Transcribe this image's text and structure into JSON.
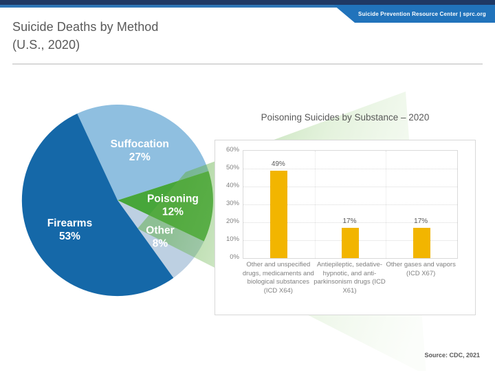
{
  "banner": {
    "text": "Suicide Prevention Resource Center | sprc.org"
  },
  "header": {
    "title_line1": "Suicide Deaths by Method",
    "title_line2": "(U.S., 2020)"
  },
  "footer": {
    "source": "Source: CDC, 2021"
  },
  "colors": {
    "top_strip_dark": "#1F3864",
    "top_strip_light": "#2E75B6",
    "banner_tab_blue": "#2173BB",
    "beam_green": "#5FAE45",
    "firearms_blue": "#1568A8",
    "suffocation_blue": "#8FBFE0",
    "poisoning_green": "#47A63A",
    "other_gray_blue": "#BDD0E2",
    "bar_gold": "#F2B500"
  },
  "chart_data": [
    {
      "type": "pie",
      "title": "Suicide Deaths by Method (U.S., 2020)",
      "start_angle_deg": -25,
      "label_color": "#FFFFFF",
      "slices": [
        {
          "label": "Suffocation",
          "value": 27,
          "pct_label": "27%",
          "color": "#8FBFE0"
        },
        {
          "label": "Poisoning",
          "value": 12,
          "pct_label": "12%",
          "color": "#47A63A"
        },
        {
          "label": "Other",
          "value": 8,
          "pct_label": "8%",
          "color": "#BDD0E2"
        },
        {
          "label": "Firearms",
          "value": 53,
          "pct_label": "53%",
          "color": "#1568A8"
        }
      ]
    },
    {
      "type": "bar",
      "title": "Poisoning Suicides by Substance – 2020",
      "categories": [
        "Other and unspecified drugs, medicaments and biological substances (ICD X64)",
        "Antiepileptic, sedative-hypnotic, and anti-parkinsonism drugs (ICD X61)",
        "Other gases and vapors (ICD X67)"
      ],
      "values": [
        49,
        17,
        17
      ],
      "value_labels": [
        "49%",
        "17%",
        "17%"
      ],
      "y_ticks": [
        "0%",
        "10%",
        "20%",
        "30%",
        "40%",
        "50%",
        "60%"
      ],
      "ylim": [
        0,
        60
      ],
      "bar_color": "#F2B500",
      "grid": true,
      "legend": false
    }
  ]
}
